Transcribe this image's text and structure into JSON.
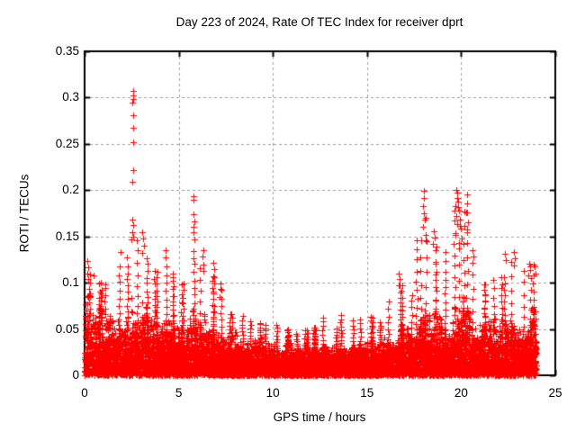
{
  "chart_data": {
    "type": "scatter",
    "title": "Day 223 of 2024, Rate Of TEC Index for receiver dprt",
    "xlabel": "GPS time / hours",
    "ylabel": "ROTI / TECUs",
    "xlim": [
      0,
      25
    ],
    "ylim": [
      0,
      0.35
    ],
    "xticks": [
      {
        "v": 0,
        "label": "0"
      },
      {
        "v": 5,
        "label": "5"
      },
      {
        "v": 10,
        "label": "10"
      },
      {
        "v": 15,
        "label": "15"
      },
      {
        "v": 20,
        "label": "20"
      },
      {
        "v": 25,
        "label": "25"
      }
    ],
    "yticks": [
      {
        "v": 0,
        "label": "0"
      },
      {
        "v": 0.05,
        "label": "0.05"
      },
      {
        "v": 0.1,
        "label": "0.1"
      },
      {
        "v": 0.15,
        "label": "0.15"
      },
      {
        "v": 0.2,
        "label": "0.2"
      },
      {
        "v": 0.25,
        "label": "0.25"
      },
      {
        "v": 0.3,
        "label": "0.3"
      },
      {
        "v": 0.35,
        "label": "0.35"
      }
    ],
    "grid": {
      "visible": true,
      "style": "dashed",
      "x_lines": [
        5,
        10,
        15,
        20
      ],
      "y_lines": [
        0.05,
        0.1,
        0.15,
        0.2,
        0.25,
        0.3
      ]
    },
    "legend": null,
    "marker": "plus",
    "marker_size_px": 7,
    "colors": {
      "marker": "#ff0000",
      "grid": "#9e9e9e",
      "border": "#000000",
      "background": "#ffffff",
      "text": "#000000"
    },
    "data_start_hour": 0,
    "data_end_hour": 24.05,
    "bin_hours": 0.5,
    "density_bins": [
      {
        "t": 0.0,
        "base": 0.075,
        "max": 0.11
      },
      {
        "t": 0.5,
        "base": 0.06,
        "max": 0.1
      },
      {
        "t": 1.0,
        "base": 0.055,
        "max": 0.095
      },
      {
        "t": 1.5,
        "base": 0.055,
        "max": 0.12
      },
      {
        "t": 2.0,
        "base": 0.06,
        "max": 0.13
      },
      {
        "t": 2.5,
        "base": 0.075,
        "max": 0.15
      },
      {
        "t": 3.0,
        "base": 0.065,
        "max": 0.13
      },
      {
        "t": 3.5,
        "base": 0.06,
        "max": 0.115
      },
      {
        "t": 4.0,
        "base": 0.06,
        "max": 0.12
      },
      {
        "t": 4.5,
        "base": 0.055,
        "max": 0.11
      },
      {
        "t": 5.0,
        "base": 0.05,
        "max": 0.1
      },
      {
        "t": 5.5,
        "base": 0.06,
        "max": 0.14
      },
      {
        "t": 6.0,
        "base": 0.055,
        "max": 0.12
      },
      {
        "t": 6.5,
        "base": 0.05,
        "max": 0.11
      },
      {
        "t": 7.0,
        "base": 0.045,
        "max": 0.095
      },
      {
        "t": 7.5,
        "base": 0.04,
        "max": 0.068
      },
      {
        "t": 8.0,
        "base": 0.038,
        "max": 0.065
      },
      {
        "t": 8.5,
        "base": 0.035,
        "max": 0.06
      },
      {
        "t": 9.0,
        "base": 0.035,
        "max": 0.058
      },
      {
        "t": 9.5,
        "base": 0.032,
        "max": 0.055
      },
      {
        "t": 10.0,
        "base": 0.03,
        "max": 0.056
      },
      {
        "t": 10.5,
        "base": 0.03,
        "max": 0.05
      },
      {
        "t": 11.0,
        "base": 0.028,
        "max": 0.046
      },
      {
        "t": 11.5,
        "base": 0.028,
        "max": 0.05
      },
      {
        "t": 12.0,
        "base": 0.028,
        "max": 0.052
      },
      {
        "t": 12.5,
        "base": 0.03,
        "max": 0.065
      },
      {
        "t": 13.0,
        "base": 0.03,
        "max": 0.052
      },
      {
        "t": 13.5,
        "base": 0.03,
        "max": 0.066
      },
      {
        "t": 14.0,
        "base": 0.03,
        "max": 0.06
      },
      {
        "t": 14.5,
        "base": 0.03,
        "max": 0.062
      },
      {
        "t": 15.0,
        "base": 0.032,
        "max": 0.065
      },
      {
        "t": 15.5,
        "base": 0.034,
        "max": 0.058
      },
      {
        "t": 16.0,
        "base": 0.038,
        "max": 0.08
      },
      {
        "t": 16.5,
        "base": 0.045,
        "max": 0.1
      },
      {
        "t": 17.0,
        "base": 0.045,
        "max": 0.09
      },
      {
        "t": 17.5,
        "base": 0.055,
        "max": 0.15
      },
      {
        "t": 18.0,
        "base": 0.06,
        "max": 0.17
      },
      {
        "t": 18.5,
        "base": 0.055,
        "max": 0.14
      },
      {
        "t": 19.0,
        "base": 0.05,
        "max": 0.135
      },
      {
        "t": 19.5,
        "base": 0.065,
        "max": 0.185
      },
      {
        "t": 20.0,
        "base": 0.07,
        "max": 0.18
      },
      {
        "t": 20.5,
        "base": 0.055,
        "max": 0.125
      },
      {
        "t": 21.0,
        "base": 0.05,
        "max": 0.1
      },
      {
        "t": 21.5,
        "base": 0.05,
        "max": 0.105
      },
      {
        "t": 22.0,
        "base": 0.05,
        "max": 0.11
      },
      {
        "t": 22.5,
        "base": 0.05,
        "max": 0.125
      },
      {
        "t": 23.0,
        "base": 0.05,
        "max": 0.115
      },
      {
        "t": 23.5,
        "base": 0.06,
        "max": 0.12
      }
    ],
    "peak_points": [
      {
        "x": 0.15,
        "y": 0.123
      },
      {
        "x": 0.18,
        "y": 0.117
      },
      {
        "x": 0.12,
        "y": 0.11
      },
      {
        "x": 0.2,
        "y": 0.104
      },
      {
        "x": 0.5,
        "y": 0.108
      },
      {
        "x": 1.1,
        "y": 0.098
      },
      {
        "x": 1.9,
        "y": 0.133
      },
      {
        "x": 2.58,
        "y": 0.307
      },
      {
        "x": 2.56,
        "y": 0.302
      },
      {
        "x": 2.58,
        "y": 0.298
      },
      {
        "x": 2.55,
        "y": 0.295
      },
      {
        "x": 2.57,
        "y": 0.281
      },
      {
        "x": 2.56,
        "y": 0.267
      },
      {
        "x": 2.58,
        "y": 0.252
      },
      {
        "x": 2.57,
        "y": 0.222
      },
      {
        "x": 2.55,
        "y": 0.209
      },
      {
        "x": 2.52,
        "y": 0.168
      },
      {
        "x": 2.56,
        "y": 0.162
      },
      {
        "x": 2.54,
        "y": 0.155
      },
      {
        "x": 2.6,
        "y": 0.15
      },
      {
        "x": 2.48,
        "y": 0.147
      },
      {
        "x": 3.05,
        "y": 0.155
      },
      {
        "x": 3.1,
        "y": 0.148
      },
      {
        "x": 3.15,
        "y": 0.14
      },
      {
        "x": 3.08,
        "y": 0.132
      },
      {
        "x": 4.3,
        "y": 0.135
      },
      {
        "x": 4.32,
        "y": 0.127
      },
      {
        "x": 5.78,
        "y": 0.193
      },
      {
        "x": 5.8,
        "y": 0.19
      },
      {
        "x": 5.79,
        "y": 0.174
      },
      {
        "x": 5.81,
        "y": 0.166
      },
      {
        "x": 5.78,
        "y": 0.16
      },
      {
        "x": 5.8,
        "y": 0.155
      },
      {
        "x": 5.82,
        "y": 0.147
      },
      {
        "x": 6.3,
        "y": 0.135
      },
      {
        "x": 6.28,
        "y": 0.128
      },
      {
        "x": 6.33,
        "y": 0.12
      },
      {
        "x": 6.3,
        "y": 0.113
      },
      {
        "x": 6.85,
        "y": 0.122
      },
      {
        "x": 6.9,
        "y": 0.115
      },
      {
        "x": 7.2,
        "y": 0.099
      },
      {
        "x": 7.25,
        "y": 0.092
      },
      {
        "x": 7.18,
        "y": 0.085
      },
      {
        "x": 16.7,
        "y": 0.11
      },
      {
        "x": 16.72,
        "y": 0.104
      },
      {
        "x": 16.68,
        "y": 0.097
      },
      {
        "x": 18.0,
        "y": 0.199
      },
      {
        "x": 18.02,
        "y": 0.192
      },
      {
        "x": 17.98,
        "y": 0.183
      },
      {
        "x": 18.0,
        "y": 0.175
      },
      {
        "x": 18.05,
        "y": 0.168
      },
      {
        "x": 17.95,
        "y": 0.16
      },
      {
        "x": 18.1,
        "y": 0.152
      },
      {
        "x": 18.15,
        "y": 0.145
      },
      {
        "x": 18.55,
        "y": 0.156
      },
      {
        "x": 18.6,
        "y": 0.149
      },
      {
        "x": 18.5,
        "y": 0.142
      },
      {
        "x": 19.75,
        "y": 0.2
      },
      {
        "x": 19.8,
        "y": 0.197
      },
      {
        "x": 19.78,
        "y": 0.192
      },
      {
        "x": 19.85,
        "y": 0.188
      },
      {
        "x": 19.7,
        "y": 0.183
      },
      {
        "x": 19.9,
        "y": 0.178
      },
      {
        "x": 19.72,
        "y": 0.172
      },
      {
        "x": 19.95,
        "y": 0.168
      },
      {
        "x": 19.8,
        "y": 0.163
      },
      {
        "x": 20.0,
        "y": 0.158
      },
      {
        "x": 19.68,
        "y": 0.152
      },
      {
        "x": 20.05,
        "y": 0.148
      },
      {
        "x": 19.88,
        "y": 0.143
      },
      {
        "x": 20.3,
        "y": 0.195
      },
      {
        "x": 20.32,
        "y": 0.186
      },
      {
        "x": 20.28,
        "y": 0.176
      },
      {
        "x": 20.35,
        "y": 0.165
      },
      {
        "x": 20.3,
        "y": 0.155
      },
      {
        "x": 20.6,
        "y": 0.135
      },
      {
        "x": 20.65,
        "y": 0.128
      },
      {
        "x": 22.3,
        "y": 0.131
      },
      {
        "x": 22.35,
        "y": 0.124
      },
      {
        "x": 22.8,
        "y": 0.133
      },
      {
        "x": 22.85,
        "y": 0.126
      },
      {
        "x": 22.78,
        "y": 0.119
      },
      {
        "x": 23.6,
        "y": 0.121
      },
      {
        "x": 23.65,
        "y": 0.114
      },
      {
        "x": 23.58,
        "y": 0.108
      },
      {
        "x": 23.9,
        "y": 0.118
      },
      {
        "x": 23.95,
        "y": 0.11
      }
    ]
  }
}
